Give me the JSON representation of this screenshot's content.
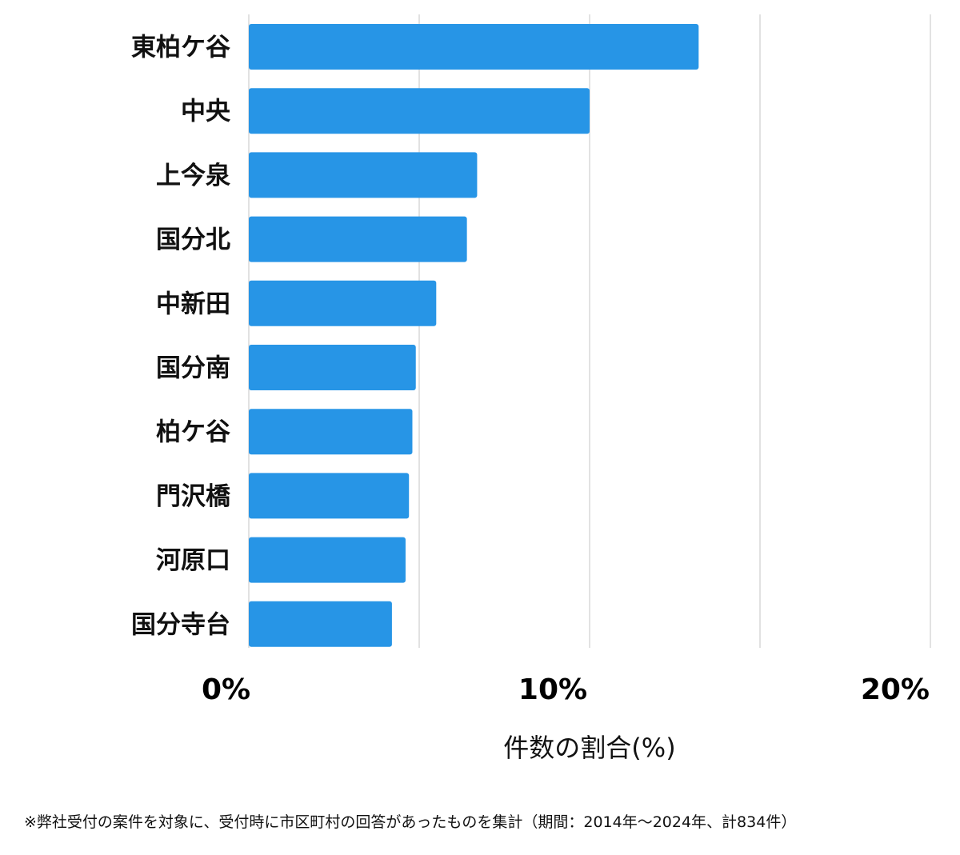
{
  "chart_data": {
    "type": "bar",
    "orientation": "horizontal",
    "categories": [
      "東柏ケ谷",
      "中央",
      "上今泉",
      "国分北",
      "中新田",
      "国分南",
      "柏ケ谷",
      "門沢橋",
      "河原口",
      "国分寺台"
    ],
    "values": [
      13.2,
      10.0,
      6.7,
      6.4,
      5.5,
      4.9,
      4.8,
      4.7,
      4.6,
      4.2
    ],
    "xlim": [
      0,
      20
    ],
    "xticks": [
      0,
      10,
      20
    ],
    "tick_labels": [
      "0%",
      "10%",
      "20%"
    ],
    "gridlines": [
      0,
      5,
      10,
      15,
      20
    ],
    "grid": true,
    "xlabel": "件数の割合(%)",
    "ylabel": "",
    "bar_color": "#2795e6",
    "grid_color": "#d9d9d9"
  },
  "footnote": "※弊社受付の案件を対象に、受付時に市区町村の回答があったものを集計（期間：2014年～2024年、計834件）"
}
